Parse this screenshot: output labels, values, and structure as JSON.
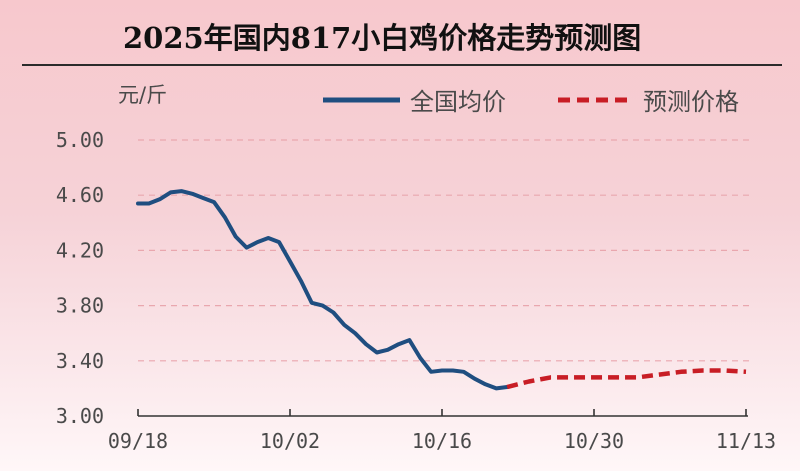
{
  "chart_data": {
    "type": "line",
    "title": "2025年国内817小白鸡价格走势预测图",
    "ylabel": "元/斤",
    "xlabel": "",
    "ylim": [
      3.0,
      5.0
    ],
    "yticks": [
      "5.00",
      "4.60",
      "4.20",
      "3.80",
      "3.40",
      "3.00"
    ],
    "xticks": [
      "09/18",
      "10/02",
      "10/16",
      "10/30",
      "11/13"
    ],
    "x_range_days": [
      0,
      56
    ],
    "grid": "horizontal-dashed",
    "legend_position": "top-right",
    "colors": {
      "actual": "#1f4e80",
      "forecast": "#c81d25",
      "title": "#111111",
      "axis": "#333333"
    },
    "series": [
      {
        "name": "全国均价",
        "style": "solid",
        "x": [
          0,
          1,
          2,
          3,
          4,
          5,
          6,
          7,
          8,
          9,
          10,
          11,
          12,
          13,
          14,
          15,
          16,
          17,
          18,
          19,
          20,
          21,
          22,
          23,
          24,
          25,
          26,
          27,
          28,
          29,
          30,
          31,
          32,
          33,
          34
        ],
        "values": [
          4.54,
          4.54,
          4.57,
          4.62,
          4.63,
          4.61,
          4.58,
          4.55,
          4.44,
          4.3,
          4.22,
          4.26,
          4.29,
          4.26,
          4.12,
          3.98,
          3.82,
          3.8,
          3.75,
          3.66,
          3.6,
          3.52,
          3.46,
          3.48,
          3.52,
          3.55,
          3.42,
          3.32,
          3.33,
          3.33,
          3.32,
          3.27,
          3.23,
          3.2,
          3.21
        ]
      },
      {
        "name": "预测价格",
        "style": "dashed",
        "x": [
          34,
          36,
          38,
          40,
          42,
          44,
          46,
          48,
          50,
          52,
          54,
          56
        ],
        "values": [
          3.21,
          3.25,
          3.28,
          3.28,
          3.28,
          3.28,
          3.28,
          3.3,
          3.32,
          3.33,
          3.33,
          3.32
        ]
      }
    ]
  }
}
